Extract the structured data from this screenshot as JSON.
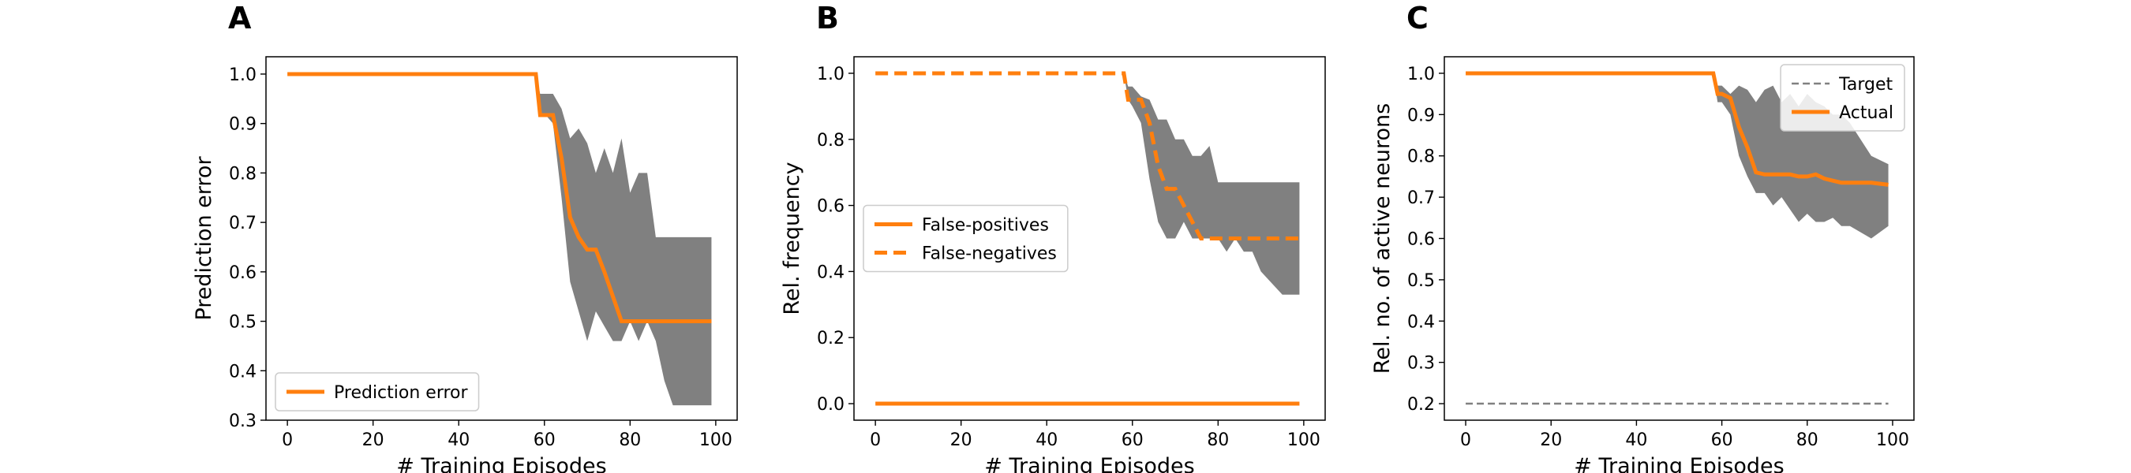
{
  "chart_data": [
    {
      "type": "line",
      "title": "A",
      "xlabel": "# Training Episodes",
      "ylabel": "Prediction error",
      "x": [
        0,
        58,
        59,
        60,
        62,
        64,
        66,
        68,
        70,
        72,
        74,
        76,
        78,
        80,
        82,
        84,
        86,
        88,
        90,
        95,
        99
      ],
      "series": [
        {
          "name": "Prediction error",
          "color": "#ff7f0e",
          "linestyle": "solid",
          "values": [
            1,
            1,
            0.917,
            0.917,
            0.917,
            0.83,
            0.71,
            0.67,
            0.645,
            0.645,
            0.6,
            0.55,
            0.5,
            0.5,
            0.5,
            0.5,
            0.5,
            0.5,
            0.5,
            0.5,
            0.5
          ]
        }
      ],
      "band": {
        "color": "#808080",
        "upper": [
          1,
          1,
          0.96,
          0.96,
          0.96,
          0.93,
          0.87,
          0.89,
          0.86,
          0.8,
          0.85,
          0.8,
          0.87,
          0.76,
          0.8,
          0.8,
          0.67,
          0.67,
          0.67,
          0.67,
          0.67
        ],
        "lower": [
          1,
          1,
          0.92,
          0.92,
          0.9,
          0.75,
          0.58,
          0.52,
          0.46,
          0.52,
          0.49,
          0.46,
          0.46,
          0.5,
          0.46,
          0.5,
          0.46,
          0.38,
          0.33,
          0.33,
          0.33
        ]
      },
      "xlim": [
        -5,
        105
      ],
      "xticks": [
        0,
        20,
        40,
        60,
        80,
        100
      ],
      "ylim": [
        0.3,
        1.035
      ],
      "yticks": [
        0.3,
        0.4,
        0.5,
        0.6,
        0.7,
        0.8,
        0.9,
        {
          "value": 1,
          "label": "1.0"
        }
      ],
      "legend": "lower left"
    },
    {
      "type": "line",
      "title": "B",
      "xlabel": "# Training Episodes",
      "ylabel": "Rel. frequency",
      "x": [
        0,
        58,
        59,
        60,
        62,
        64,
        66,
        68,
        70,
        72,
        74,
        76,
        78,
        80,
        82,
        84,
        86,
        88,
        90,
        95,
        99
      ],
      "series": [
        {
          "name": "False-positives",
          "color": "#ff7f0e",
          "linestyle": "solid",
          "values": [
            0,
            0,
            0,
            0,
            0,
            0,
            0,
            0,
            0,
            0,
            0,
            0,
            0,
            0,
            0,
            0,
            0,
            0,
            0,
            0,
            0
          ]
        },
        {
          "name": "False-negatives",
          "color": "#ff7f0e",
          "linestyle": "dashed",
          "values": [
            1,
            1,
            0.92,
            0.92,
            0.92,
            0.85,
            0.72,
            0.65,
            0.65,
            0.6,
            0.55,
            0.5,
            0.5,
            0.5,
            0.5,
            0.5,
            0.5,
            0.5,
            0.5,
            0.5,
            0.5
          ]
        }
      ],
      "band": {
        "color": "#808080",
        "upper": [
          1,
          1,
          0.96,
          0.96,
          0.93,
          0.92,
          0.86,
          0.86,
          0.8,
          0.8,
          0.75,
          0.75,
          0.78,
          0.67,
          0.67,
          0.67,
          0.67,
          0.67,
          0.67,
          0.67,
          0.67
        ],
        "lower": [
          1,
          1,
          0.92,
          0.9,
          0.85,
          0.68,
          0.55,
          0.5,
          0.5,
          0.55,
          0.5,
          0.5,
          0.5,
          0.5,
          0.46,
          0.5,
          0.46,
          0.46,
          0.4,
          0.33,
          0.33
        ]
      },
      "xlim": [
        -5,
        105
      ],
      "xticks": [
        0,
        20,
        40,
        60,
        80,
        100
      ],
      "ylim": [
        -0.05,
        1.05
      ],
      "yticks": [
        {
          "value": 0,
          "label": "0.0"
        },
        0.2,
        0.4,
        0.6,
        0.8,
        {
          "value": 1,
          "label": "1.0"
        }
      ],
      "legend": "center left"
    },
    {
      "type": "line",
      "title": "C",
      "xlabel": "# Training Episodes",
      "ylabel": "Rel. no. of active neurons",
      "x": [
        0,
        58,
        59,
        60,
        62,
        64,
        66,
        68,
        70,
        72,
        74,
        76,
        78,
        80,
        82,
        84,
        86,
        88,
        90,
        95,
        99
      ],
      "series": [
        {
          "name": "Target",
          "color": "#808080",
          "linestyle": "dashed",
          "thin": true,
          "values": [
            0.2,
            0.2,
            0.2,
            0.2,
            0.2,
            0.2,
            0.2,
            0.2,
            0.2,
            0.2,
            0.2,
            0.2,
            0.2,
            0.2,
            0.2,
            0.2,
            0.2,
            0.2,
            0.2,
            0.2,
            0.2
          ]
        },
        {
          "name": "Actual",
          "color": "#ff7f0e",
          "linestyle": "solid",
          "values": [
            1,
            1,
            0.95,
            0.95,
            0.94,
            0.87,
            0.82,
            0.76,
            0.755,
            0.755,
            0.755,
            0.755,
            0.75,
            0.75,
            0.755,
            0.745,
            0.74,
            0.735,
            0.735,
            0.735,
            0.73
          ]
        }
      ],
      "band": {
        "color": "#808080",
        "upper": [
          1,
          1,
          0.97,
          0.97,
          0.95,
          0.97,
          0.96,
          0.93,
          0.96,
          0.97,
          0.93,
          0.95,
          0.92,
          0.95,
          0.93,
          0.92,
          0.9,
          0.9,
          0.88,
          0.8,
          0.78
        ],
        "lower": [
          1,
          1,
          0.93,
          0.93,
          0.9,
          0.8,
          0.75,
          0.71,
          0.71,
          0.68,
          0.7,
          0.67,
          0.64,
          0.66,
          0.64,
          0.64,
          0.65,
          0.63,
          0.63,
          0.6,
          0.63
        ]
      },
      "xlim": [
        -5,
        105
      ],
      "xticks": [
        0,
        20,
        40,
        60,
        80,
        100
      ],
      "ylim": [
        0.16,
        1.04
      ],
      "yticks": [
        0.2,
        0.3,
        0.4,
        0.5,
        0.6,
        0.7,
        0.8,
        0.9,
        {
          "value": 1,
          "label": "1.0"
        }
      ],
      "legend": "upper right"
    }
  ]
}
